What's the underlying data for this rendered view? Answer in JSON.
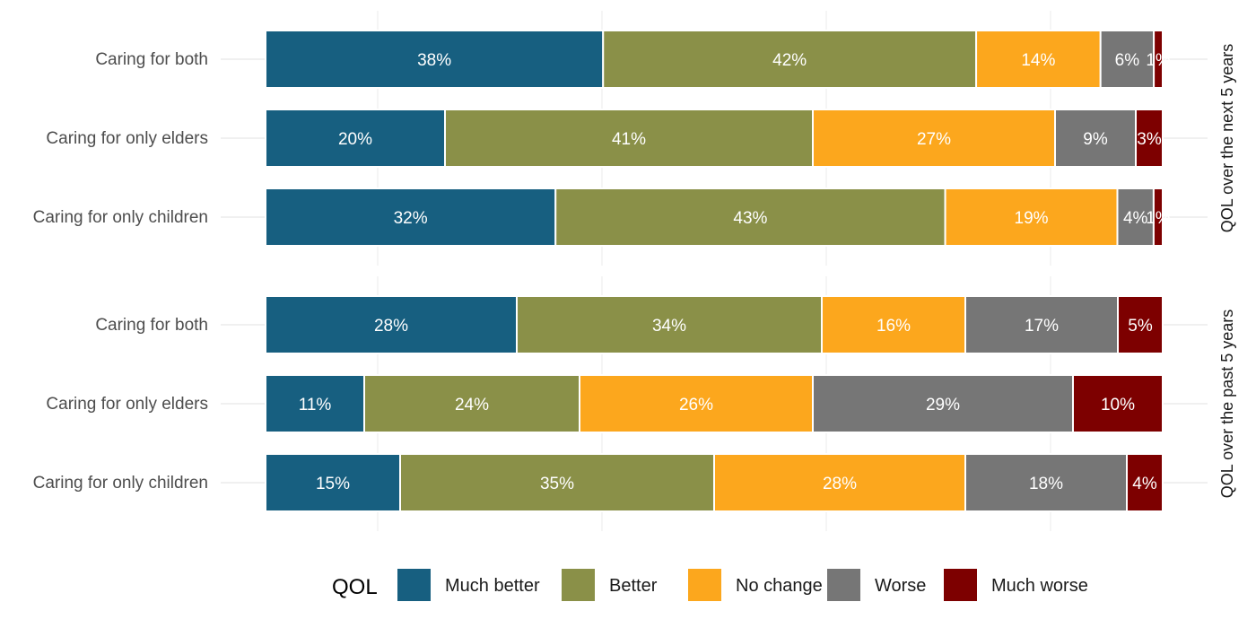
{
  "chart_data": {
    "type": "bar",
    "orientation": "horizontal",
    "stacked": true,
    "normalized": true,
    "grid": true,
    "legend_placement": "bottom",
    "legend_title": "QOL",
    "legend": [
      "Much better",
      "Better",
      "No change",
      "Worse",
      "Much worse"
    ],
    "colors": [
      "#175f80",
      "#8a9048",
      "#fca71d",
      "#767676",
      "#7d0000"
    ],
    "panels": [
      {
        "strip_label": "QOL over the next 5 years",
        "categories": [
          "Caring for both",
          "Caring for only elders",
          "Caring for only children"
        ],
        "series": [
          {
            "name": "Much better",
            "values": [
              38,
              20,
              32
            ]
          },
          {
            "name": "Better",
            "values": [
              42,
              41,
              43
            ]
          },
          {
            "name": "No change",
            "values": [
              14,
              27,
              19
            ]
          },
          {
            "name": "Worse",
            "values": [
              6,
              9,
              4
            ]
          },
          {
            "name": "Much worse",
            "values": [
              1,
              3,
              1
            ]
          }
        ]
      },
      {
        "strip_label": "QOL over the past 5 years",
        "categories": [
          "Caring for both",
          "Caring for only elders",
          "Caring for only children"
        ],
        "series": [
          {
            "name": "Much better",
            "values": [
              28,
              11,
              15
            ]
          },
          {
            "name": "Better",
            "values": [
              34,
              24,
              35
            ]
          },
          {
            "name": "No change",
            "values": [
              16,
              26,
              28
            ]
          },
          {
            "name": "Worse",
            "values": [
              17,
              29,
              18
            ]
          },
          {
            "name": "Much worse",
            "values": [
              5,
              10,
              4
            ]
          }
        ]
      }
    ]
  }
}
